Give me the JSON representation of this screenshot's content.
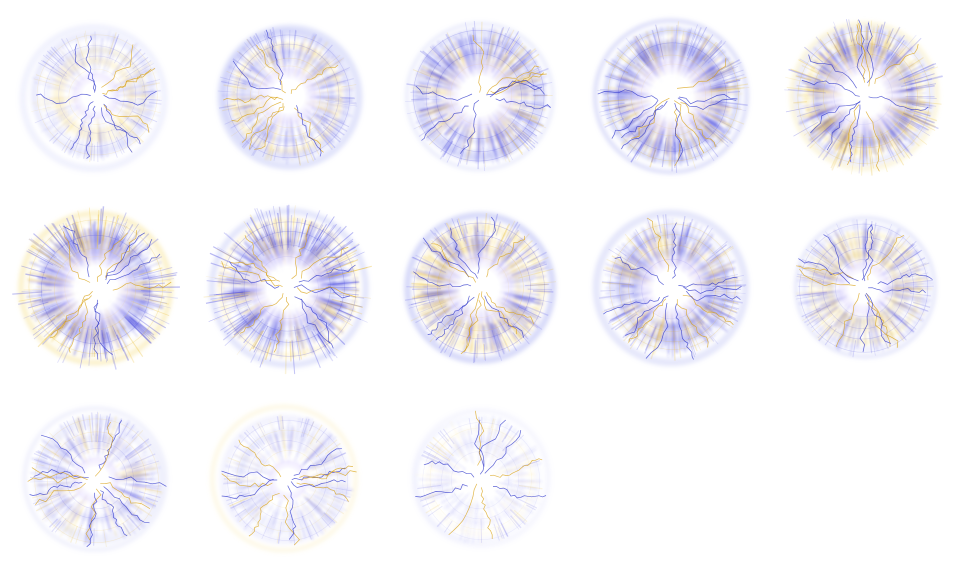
{
  "sprite_sheet": {
    "columns": 5,
    "rows": 3,
    "frame_count": 13,
    "colors": {
      "background": "#ffffff",
      "core": "#ffffff",
      "blue": "#3a3adc",
      "blue_light": "#9aa0f0",
      "gold": "#e8b820",
      "gold_light": "#f5dc78"
    },
    "frames": [
      {
        "intensity": 0.25,
        "core": 0.12,
        "lightning": 0.8,
        "fade": 0.55,
        "gold": 0.45,
        "spikes": 0.2
      },
      {
        "intensity": 0.55,
        "core": 0.22,
        "lightning": 0.7,
        "fade": 0.75,
        "gold": 0.6,
        "spikes": 0.3
      },
      {
        "intensity": 0.85,
        "core": 0.32,
        "lightning": 0.6,
        "fade": 0.9,
        "gold": 0.55,
        "spikes": 0.45
      },
      {
        "intensity": 0.95,
        "core": 0.36,
        "lightning": 0.75,
        "fade": 0.95,
        "gold": 0.6,
        "spikes": 0.55
      },
      {
        "intensity": 1.0,
        "core": 0.34,
        "lightning": 0.9,
        "fade": 1.0,
        "gold": 0.75,
        "spikes": 0.7
      },
      {
        "intensity": 1.0,
        "core": 0.38,
        "lightning": 0.9,
        "fade": 1.0,
        "gold": 0.55,
        "spikes": 0.85
      },
      {
        "intensity": 1.0,
        "core": 0.36,
        "lightning": 0.85,
        "fade": 1.0,
        "gold": 0.5,
        "spikes": 1.0
      },
      {
        "intensity": 0.9,
        "core": 0.3,
        "lightning": 0.85,
        "fade": 0.95,
        "gold": 0.65,
        "spikes": 0.5
      },
      {
        "intensity": 0.85,
        "core": 0.26,
        "lightning": 0.9,
        "fade": 0.9,
        "gold": 0.6,
        "spikes": 0.4
      },
      {
        "intensity": 0.6,
        "core": 0.16,
        "lightning": 1.0,
        "fade": 0.75,
        "gold": 0.5,
        "spikes": 0.25
      },
      {
        "intensity": 0.45,
        "core": 0.1,
        "lightning": 1.0,
        "fade": 0.6,
        "gold": 0.55,
        "spikes": 0.2
      },
      {
        "intensity": 0.25,
        "core": 0.04,
        "lightning": 0.9,
        "fade": 0.45,
        "gold": 0.5,
        "spikes": 0.1
      },
      {
        "intensity": 0.12,
        "core": 0.0,
        "lightning": 0.6,
        "fade": 0.3,
        "gold": 0.4,
        "spikes": 0.05
      }
    ]
  }
}
